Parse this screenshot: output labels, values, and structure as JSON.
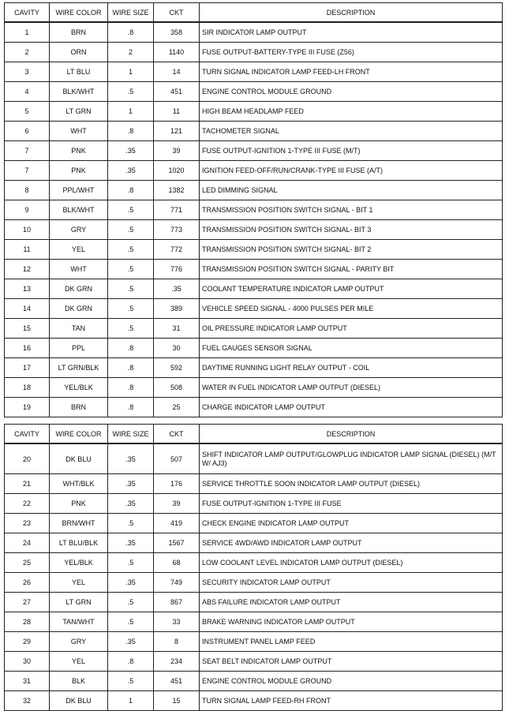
{
  "headers": {
    "cavity": "CAVITY",
    "wire_color": "WIRE COLOR",
    "wire_size": "WIRE SIZE",
    "ckt": "CKT",
    "description": "DESCRIPTION"
  },
  "table1": [
    {
      "cavity": "1",
      "color": "BRN",
      "size": ".8",
      "ckt": "358",
      "desc": "SIR INDICATOR LAMP OUTPUT"
    },
    {
      "cavity": "2",
      "color": "ORN",
      "size": "2",
      "ckt": "1140",
      "desc": "FUSE OUTPUT-BATTERY-TYPE III FUSE (Z56)"
    },
    {
      "cavity": "3",
      "color": "LT BLU",
      "size": "1",
      "ckt": "14",
      "desc": "TURN SIGNAL INDICATOR LAMP FEED-LH FRONT"
    },
    {
      "cavity": "4",
      "color": "BLK/WHT",
      "size": ".5",
      "ckt": "451",
      "desc": "ENGINE CONTROL MODULE GROUND"
    },
    {
      "cavity": "5",
      "color": "LT GRN",
      "size": "1",
      "ckt": "11",
      "desc": "HIGH BEAM HEADLAMP FEED"
    },
    {
      "cavity": "6",
      "color": "WHT",
      "size": ".8",
      "ckt": "121",
      "desc": "TACHOMETER SIGNAL"
    },
    {
      "cavity": "7",
      "color": "PNK",
      "size": ".35",
      "ckt": "39",
      "desc": "FUSE OUTPUT-IGNITION 1-TYPE III FUSE (M/T)"
    },
    {
      "cavity": "7",
      "color": "PNK",
      "size": ".35",
      "ckt": "1020",
      "desc": "IGNITION FEED-OFF/RUN/CRANK-TYPE III FUSE (A/T)"
    },
    {
      "cavity": "8",
      "color": "PPL/WHT",
      "size": ".8",
      "ckt": "1382",
      "desc": "LED DIMMING SIGNAL"
    },
    {
      "cavity": "9",
      "color": "BLK/WHT",
      "size": ".5",
      "ckt": "771",
      "desc": "TRANSMISSION POSITION SWITCH SIGNAL - BIT 1"
    },
    {
      "cavity": "10",
      "color": "GRY",
      "size": ".5",
      "ckt": "773",
      "desc": "TRANSMISSION POSITION SWITCH SIGNAL- BIT 3"
    },
    {
      "cavity": "11",
      "color": "YEL",
      "size": ".5",
      "ckt": "772",
      "desc": "TRANSMISSION POSITION SWITCH SIGNAL- BIT 2"
    },
    {
      "cavity": "12",
      "color": "WHT",
      "size": ".5",
      "ckt": "776",
      "desc": "TRANSMISSION POSITION SWITCH SIGNAL - PARITY BIT"
    },
    {
      "cavity": "13",
      "color": "DK GRN",
      "size": ".5",
      "ckt": ".35",
      "desc": "COOLANT TEMPERATURE INDICATOR LAMP OUTPUT"
    },
    {
      "cavity": "14",
      "color": "DK GRN",
      "size": ".5",
      "ckt": "389",
      "desc": "VEHICLE SPEED SIGNAL - 4000 PULSES PER MILE"
    },
    {
      "cavity": "15",
      "color": "TAN",
      "size": ".5",
      "ckt": "31",
      "desc": "OIL PRESSURE INDICATOR LAMP OUTPUT"
    },
    {
      "cavity": "16",
      "color": "PPL",
      "size": ".8",
      "ckt": "30",
      "desc": "FUEL GAUGES SENSOR SIGNAL"
    },
    {
      "cavity": "17",
      "color": "LT GRN/BLK",
      "size": ".8",
      "ckt": "592",
      "desc": "DAYTIME RUNNING LIGHT RELAY OUTPUT - COIL"
    },
    {
      "cavity": "18",
      "color": "YEL/BLK",
      "size": ".8",
      "ckt": "508",
      "desc": "WATER IN FUEL INDICATOR LAMP OUTPUT (DIESEL)"
    },
    {
      "cavity": "19",
      "color": "BRN",
      "size": ".8",
      "ckt": "25",
      "desc": "CHARGE INDICATOR LAMP OUTPUT"
    }
  ],
  "table2": [
    {
      "cavity": "20",
      "color": "DK BLU",
      "size": ".35",
      "ckt": "507",
      "desc": "SHIFT INDICATOR LAMP OUTPUT/GLOWPLUG INDICATOR LAMP SIGNAL (DIESEL) (M/T W/ AJ3)"
    },
    {
      "cavity": "21",
      "color": "WHT/BLK",
      "size": ".35",
      "ckt": "176",
      "desc": "SERVICE THROTTLE SOON INDICATOR LAMP OUTPUT (DIESEL)"
    },
    {
      "cavity": "22",
      "color": "PNK",
      "size": ".35",
      "ckt": "39",
      "desc": "FUSE OUTPUT-IGNITION 1-TYPE III FUSE"
    },
    {
      "cavity": "23",
      "color": "BRN/WHT",
      "size": ".5",
      "ckt": "419",
      "desc": "CHECK ENGINE INDICATOR LAMP OUTPUT"
    },
    {
      "cavity": "24",
      "color": "LT BLU/BLK",
      "size": ".35",
      "ckt": "1567",
      "desc": "SERVICE 4WD/AWD INDICATOR LAMP OUTPUT"
    },
    {
      "cavity": "25",
      "color": "YEL/BLK",
      "size": ".5",
      "ckt": "68",
      "desc": "LOW COOLANT LEVEL INDICATOR LAMP OUTPUT (DIESEL)"
    },
    {
      "cavity": "26",
      "color": "YEL",
      "size": ".35",
      "ckt": "749",
      "desc": "SECURITY INDICATOR LAMP OUTPUT"
    },
    {
      "cavity": "27",
      "color": "LT GRN",
      "size": ".5",
      "ckt": "867",
      "desc": "ABS FAILURE INDICATOR LAMP OUTPUT"
    },
    {
      "cavity": "28",
      "color": "TAN/WHT",
      "size": ".5",
      "ckt": "33",
      "desc": "BRAKE WARNING INDICATOR LAMP OUTPUT"
    },
    {
      "cavity": "29",
      "color": "GRY",
      "size": ".35",
      "ckt": "8",
      "desc": "INSTRUMENT PANEL LAMP FEED"
    },
    {
      "cavity": "30",
      "color": "YEL",
      "size": ".8",
      "ckt": "234",
      "desc": "SEAT BELT INDICATOR LAMP OUTPUT"
    },
    {
      "cavity": "31",
      "color": "BLK",
      "size": ".5",
      "ckt": "451",
      "desc": "ENGINE CONTROL MODULE GROUND"
    },
    {
      "cavity": "32",
      "color": "DK BLU",
      "size": "1",
      "ckt": "15",
      "desc": "TURN SIGNAL LAMP FEED-RH FRONT"
    }
  ]
}
